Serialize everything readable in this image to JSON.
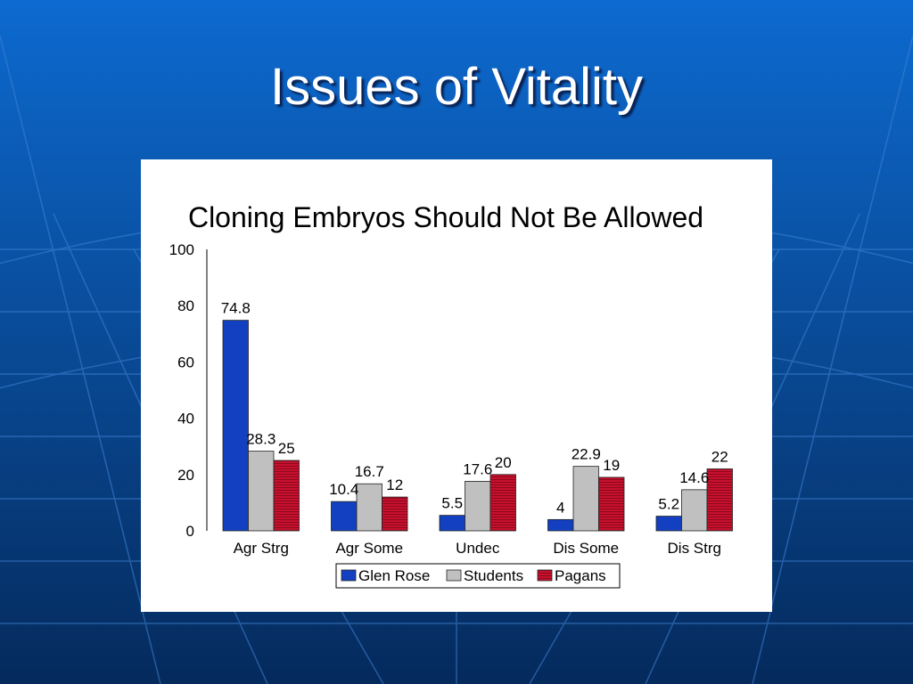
{
  "slide": {
    "title": "Issues of Vitality",
    "colors": {
      "background_top": "#0d6ad0",
      "background_bottom": "#052a5c",
      "grid_line": "#3f83d6"
    }
  },
  "chart_data": {
    "type": "bar",
    "title": "Cloning Embryos Should Not Be Allowed",
    "categories": [
      "Agr Strg",
      "Agr Some",
      "Undec",
      "Dis Some",
      "Dis Strg"
    ],
    "series": [
      {
        "name": "Glen Rose",
        "values": [
          74.8,
          10.4,
          5.5,
          4,
          5.2
        ],
        "labels": [
          "74.8",
          "10.4",
          "5.5",
          "4",
          "5.2"
        ],
        "color": "#1240c0"
      },
      {
        "name": "Students",
        "values": [
          28.3,
          16.7,
          17.6,
          22.9,
          14.6
        ],
        "labels": [
          "28.3",
          "16.7",
          "17.6",
          "22.9",
          "14.6"
        ],
        "color": "#c0c0c0"
      },
      {
        "name": "Pagans",
        "values": [
          25,
          12,
          20,
          19,
          22
        ],
        "labels": [
          "25",
          "12",
          "20",
          "19",
          "22"
        ],
        "color": "#c8102e"
      }
    ],
    "ylim": [
      0,
      100
    ],
    "yticks": [
      0,
      20,
      40,
      60,
      80,
      100
    ],
    "xlabel": "",
    "ylabel": "",
    "grid": false,
    "legend": "bottom"
  }
}
